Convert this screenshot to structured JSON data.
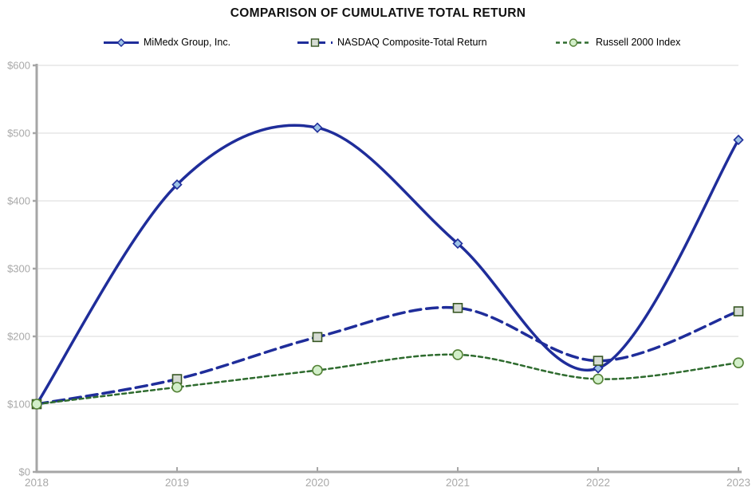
{
  "title": "COMPARISON OF CUMULATIVE TOTAL RETURN",
  "chart_data": {
    "type": "line",
    "title": "COMPARISON OF CUMULATIVE TOTAL RETURN",
    "x": [
      "2018",
      "2019",
      "2020",
      "2021",
      "2022",
      "2023"
    ],
    "series": [
      {
        "name": "MiMedx Group, Inc.",
        "values": [
          100,
          424,
          508,
          337,
          153,
          490
        ],
        "color": "#1F2D9A",
        "dash": "",
        "line_width": 3.5,
        "marker": "diamond",
        "marker_fill": "#9DC3E6",
        "marker_stroke": "#1F2D9A"
      },
      {
        "name": "NASDAQ Composite-Total Return",
        "values": [
          100,
          137,
          199,
          242,
          164,
          237
        ],
        "color": "#1F2D9A",
        "dash": "14 7",
        "line_width": 3.5,
        "marker": "square",
        "marker_fill": "#D6DCD4",
        "marker_stroke": "#375623"
      },
      {
        "name": "Russell 2000 Index",
        "values": [
          100,
          125,
          150,
          173,
          137,
          161
        ],
        "color": "#2E6B2E",
        "dash": "5 4",
        "line_width": 2.5,
        "marker": "circle",
        "marker_fill": "#D2EFC9",
        "marker_stroke": "#538135"
      }
    ],
    "ylabel": "",
    "xlabel": "",
    "ylim": [
      0,
      600
    ],
    "y_tick_step": 100,
    "y_tick_labels": [
      "$0",
      "$100",
      "$200",
      "$300",
      "$400",
      "$500",
      "$600"
    ],
    "x_tick_labels": [
      "2018",
      "2019",
      "2020",
      "2021",
      "2022",
      "2023"
    ],
    "grid": "horizontal",
    "legend_position": "top",
    "smoothed": true,
    "colors": {
      "background": "#FFFFFF",
      "axis": "#A6A6A6",
      "gridline": "#D9D9D9",
      "tick_label": "#A9A9A9",
      "title_text": "#111111"
    }
  }
}
